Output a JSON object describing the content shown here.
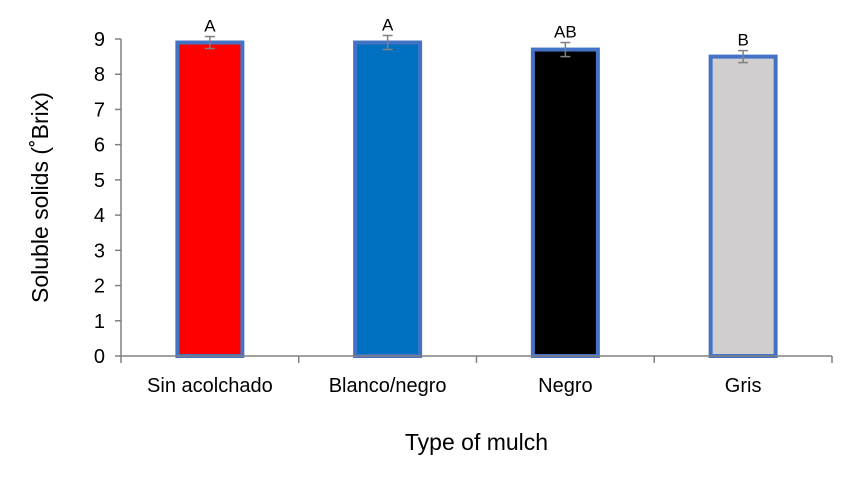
{
  "chart_data": {
    "type": "bar",
    "title": "",
    "xlabel": "Type of mulch",
    "ylabel": "Soluble solids (˚Brix)",
    "ylim": [
      0,
      9
    ],
    "yticks": [
      "0",
      "1",
      "2",
      "3",
      "4",
      "5",
      "6",
      "7",
      "8",
      "9"
    ],
    "grid": false,
    "categories": [
      "Sin acolchado",
      "Blanco/negro",
      "Negro",
      "Gris"
    ],
    "values": [
      8.9,
      8.9,
      8.7,
      8.5
    ],
    "errors": [
      0.17,
      0.2,
      0.2,
      0.17
    ],
    "significance_letters": [
      "A",
      "A",
      "AB",
      "B"
    ],
    "bar_colors": [
      "#ff0000",
      "#0070c0",
      "#000000",
      "#d0cece"
    ],
    "bar_outline_color": "#4472c4",
    "error_bar_color": "#808080"
  }
}
